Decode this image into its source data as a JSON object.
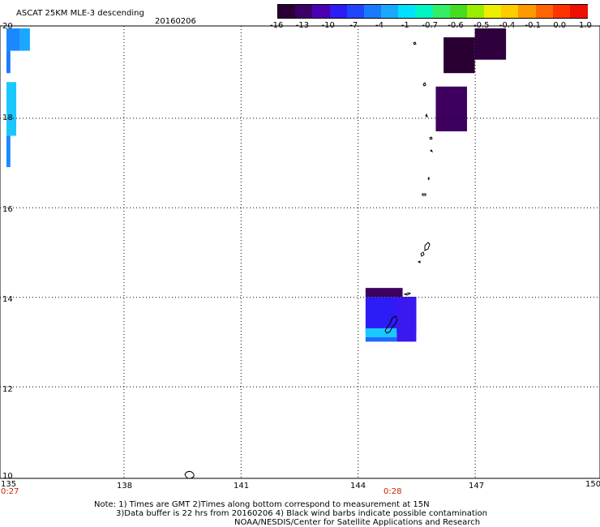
{
  "title": "ASCAT 25KM MLE-3 descending",
  "date": "20160206",
  "colorbar": {
    "labels": [
      "-16",
      "-13",
      "-10",
      "-7",
      "-4",
      "-1",
      "-0.7",
      "-0.6",
      "-0.5",
      "-0.4",
      "-0.1",
      "0.0",
      "1.0"
    ],
    "colors": [
      "#2a0033",
      "#3a0066",
      "#4b00b3",
      "#2d1cf5",
      "#1f45ff",
      "#1a7aff",
      "#1aa8ff",
      "#00e0ff",
      "#00f5c0",
      "#33ee66",
      "#44dd22",
      "#99ee00",
      "#eeee00",
      "#ffcc00",
      "#ff9900",
      "#ff6600",
      "#ff3300",
      "#ee1100"
    ]
  },
  "axes": {
    "lon_labels": [
      "135",
      "138",
      "141",
      "144",
      "147",
      "150"
    ],
    "lat_labels": [
      "20",
      "18",
      "16",
      "14",
      "12",
      "10"
    ],
    "lon_range": [
      135,
      150
    ],
    "lat_range": [
      10,
      20
    ]
  },
  "time_labels": [
    "0:27",
    "0:28"
  ],
  "notes": {
    "line1": "Note: 1) Times are GMT 2)Times along bottom correspond to measurement at 15N",
    "line2": "3)Data buffer is 22 hrs from 20160206 4) Black wind barbs indicate possible contamination",
    "line3": "NOAA/NESDIS/Center for Satellite Applications and Research"
  },
  "data_cells": [
    {
      "lon": 135.0,
      "lat": 20.0,
      "lon2": 135.35,
      "lat2": 19.5,
      "color": "#1a88ff"
    },
    {
      "lon": 135.0,
      "lat": 19.5,
      "lon2": 135.1,
      "lat2": 19.0,
      "color": "#1a7aff"
    },
    {
      "lon": 135.35,
      "lat": 20.0,
      "lon2": 135.6,
      "lat2": 19.5,
      "color": "#1aa8ff"
    },
    {
      "lon": 135.0,
      "lat": 18.8,
      "lon2": 135.25,
      "lat2": 17.6,
      "color": "#1ac8ff"
    },
    {
      "lon": 135.0,
      "lat": 17.6,
      "lon2": 135.1,
      "lat2": 16.9,
      "color": "#1a88ff"
    },
    {
      "lon": 146.2,
      "lat": 19.8,
      "lon2": 147.0,
      "lat2": 19.0,
      "color": "#2a0033"
    },
    {
      "lon": 147.0,
      "lat": 20.0,
      "lon2": 147.8,
      "lat2": 19.3,
      "color": "#2f003e"
    },
    {
      "lon": 146.0,
      "lat": 18.7,
      "lon2": 146.8,
      "lat2": 17.7,
      "color": "#3d005e"
    },
    {
      "lon": 144.2,
      "lat": 14.2,
      "lon2": 145.15,
      "lat2": 14.0,
      "color": "#3d005e"
    },
    {
      "lon": 144.2,
      "lat": 14.0,
      "lon2": 145.5,
      "lat2": 13.2,
      "color": "#2d1cf5"
    },
    {
      "lon": 144.2,
      "lat": 13.3,
      "lon2": 145.0,
      "lat2": 13.1,
      "color": "#1ac8ff"
    },
    {
      "lon": 144.2,
      "lat": 13.1,
      "lon2": 145.0,
      "lat2": 13.0,
      "color": "#1a6cff"
    },
    {
      "lon": 145.0,
      "lat": 14.0,
      "lon2": 145.5,
      "lat2": 13.0,
      "color": "#3a18f0"
    }
  ]
}
